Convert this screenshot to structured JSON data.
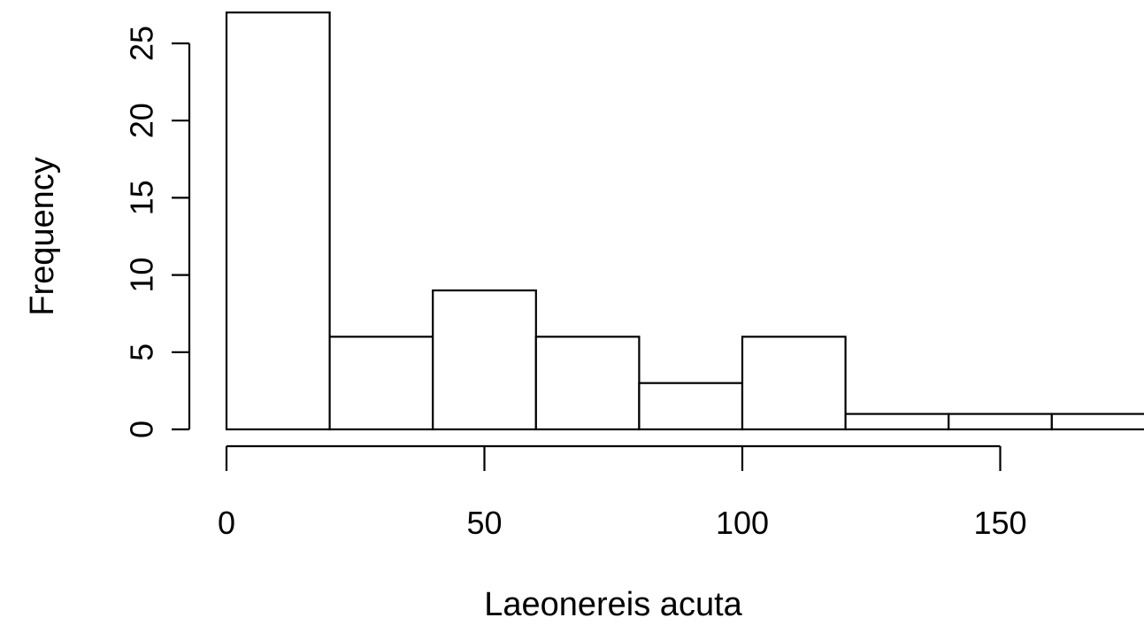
{
  "chart_data": {
    "type": "bar",
    "title": "",
    "xlabel": "Laeonereis acuta",
    "ylabel": "Frequency",
    "bins": [
      [
        0,
        20
      ],
      [
        20,
        40
      ],
      [
        40,
        60
      ],
      [
        60,
        80
      ],
      [
        80,
        100
      ],
      [
        100,
        120
      ],
      [
        120,
        140
      ],
      [
        140,
        160
      ],
      [
        160,
        180
      ]
    ],
    "values": [
      27,
      6,
      9,
      6,
      3,
      6,
      1,
      1,
      1
    ],
    "xlim": [
      0,
      180
    ],
    "ylim": [
      0,
      27
    ],
    "x_ticks": [
      0,
      50,
      100,
      150
    ],
    "x_tick_labels": [
      "0",
      "50",
      "100",
      "150"
    ],
    "y_ticks": [
      0,
      5,
      10,
      15,
      20,
      25
    ],
    "y_tick_labels": [
      "0",
      "5",
      "10",
      "15",
      "20",
      "25"
    ],
    "grid": false,
    "legend": "none"
  }
}
